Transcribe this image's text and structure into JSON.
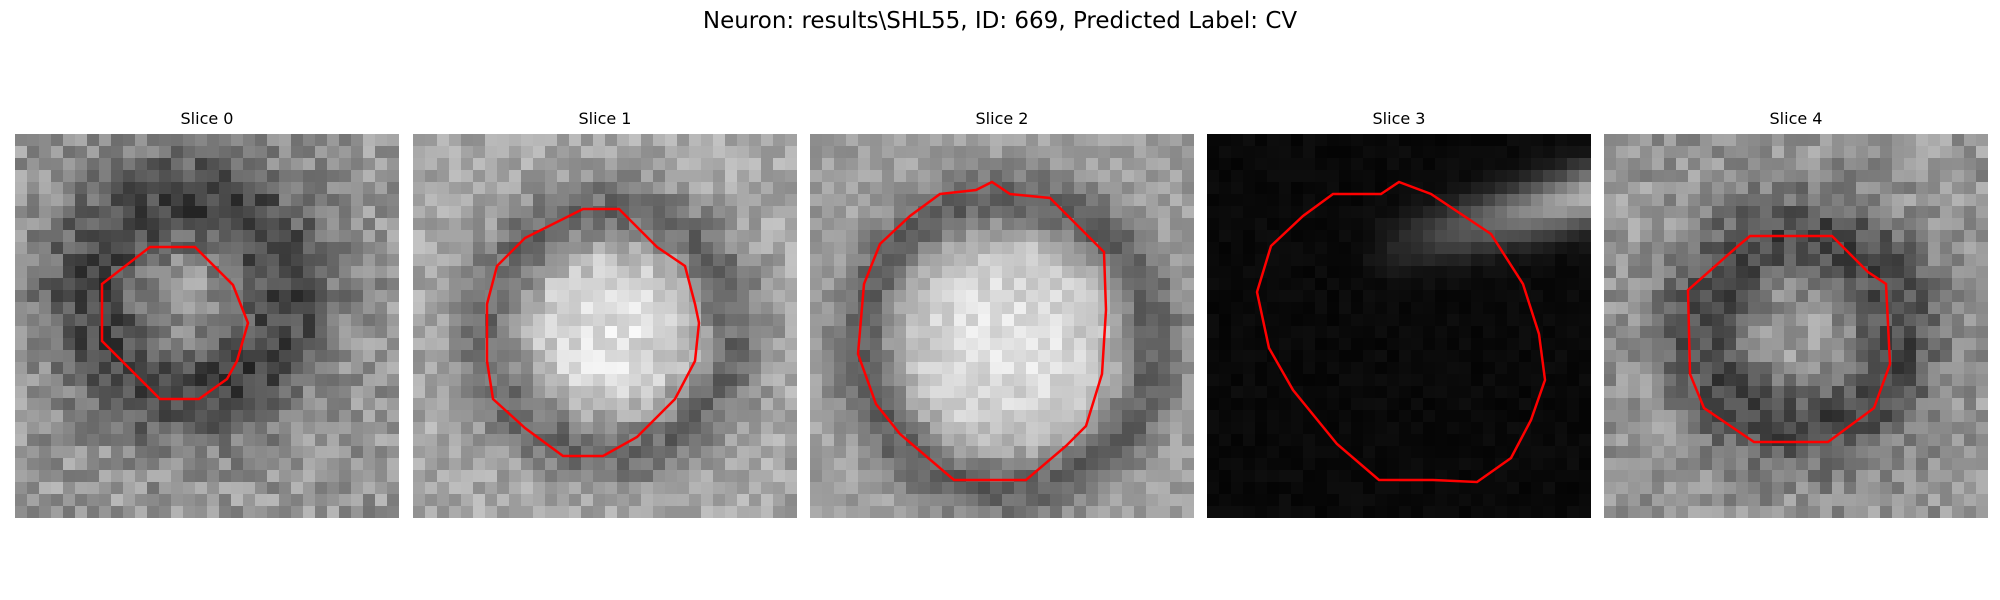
{
  "figure": {
    "title": "Neuron: results\\SHL55, ID: 669, Predicted Label: CV"
  },
  "slices": [
    {
      "title": "Slice 0"
    },
    {
      "title": "Slice 1"
    },
    {
      "title": "Slice 2"
    },
    {
      "title": "Slice 3"
    },
    {
      "title": "Slice 4"
    }
  ],
  "colors": {
    "contour": "#ff0000",
    "background": "#ffffff"
  }
}
